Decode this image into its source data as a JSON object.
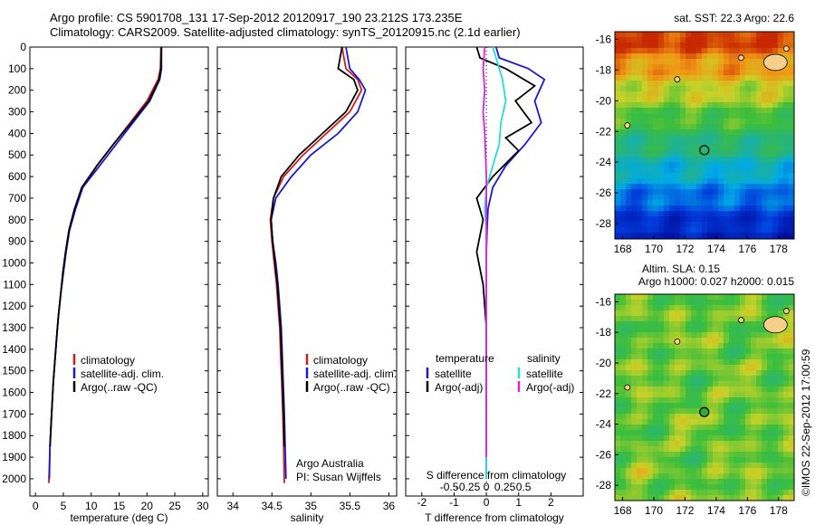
{
  "title_line1": "Argo profile: CS 5901708_131 17-Sep-2012 20120917_190 23.212S 173.235E",
  "title_line2": "Climatology: CARS2009. Satellite-adjusted climatology: synTS_20120915.nc (2.1d earlier)",
  "depth_ticks": [
    0,
    100,
    200,
    300,
    400,
    500,
    600,
    700,
    800,
    900,
    1000,
    1100,
    1200,
    1300,
    1400,
    1500,
    1600,
    1700,
    1800,
    1900,
    2000
  ],
  "colors": {
    "climatology": "#d11a1a",
    "satellite": "#1a1ad1",
    "argo": "#000000",
    "sal_satellite": "#22dddd",
    "sal_argo": "#e022e0"
  },
  "panels": {
    "temperature": {
      "xlabel": "temperature (deg C)",
      "xticks": [
        0,
        5,
        10,
        15,
        20,
        25,
        30
      ],
      "legend": [
        "climatology",
        "satellite-adj. clim.",
        "Argo(..raw -QC)"
      ]
    },
    "salinity": {
      "xlabel": "salinity",
      "xticks": [
        "34",
        "34.5",
        "35",
        "35.5",
        "36"
      ],
      "legend": [
        "climatology",
        "satellite-adj. clim.",
        "Argo(..raw -QC)"
      ],
      "credit1": "Argo Australia",
      "credit2": "PI: Susan Wijffels"
    },
    "difference": {
      "xlabel": "T difference from climatology",
      "s_label": "S difference from climatology",
      "t_ticks": [
        "-2",
        "-1",
        "0",
        "1",
        "2"
      ],
      "s_ticks": [
        "-0.5",
        "-0.25",
        "0",
        "0.25",
        "0.5"
      ],
      "leg_t_head": "temperature",
      "leg_s_head": "salinity",
      "leg_t1": "satellite",
      "leg_t2": "Argo(-adj)",
      "leg_s1": "satellite",
      "leg_s2": "Argo(-adj)"
    }
  },
  "map_sst": {
    "title": "sat. SST: 22.3  Argo: 22.6",
    "yticks": [
      "-16",
      "-18",
      "-20",
      "-22",
      "-24",
      "-26",
      "-28"
    ],
    "xticks": [
      "168",
      "170",
      "172",
      "174",
      "176",
      "178"
    ]
  },
  "map_sla": {
    "title1": "Altim. SLA: 0.15",
    "title2": "Argo h1000: 0.027 h2000: 0.015",
    "yticks": [
      "-16",
      "-18",
      "-20",
      "-22",
      "-24",
      "-26",
      "-28"
    ],
    "xticks": [
      "168",
      "170",
      "172",
      "174",
      "176",
      "178"
    ]
  },
  "stamp": "©IMOS 22-Sep-2012 17:00:59",
  "chart_data": [
    {
      "type": "line",
      "panel": "temperature",
      "xlabel": "temperature (deg C)",
      "ylabel": "",
      "xlim": [
        -1,
        31
      ],
      "ylim": [
        2080,
        0
      ],
      "series": [
        {
          "name": "climatology",
          "x": [
            22.5,
            22.4,
            22.0,
            20,
            17,
            14,
            11,
            8.5,
            7,
            6,
            5.4,
            4.9,
            4.5,
            4.1,
            3.8,
            3.5,
            3.2,
            3.0,
            2.8,
            2.6,
            2.4
          ],
          "y": [
            0,
            100,
            150,
            250,
            350,
            450,
            550,
            650,
            750,
            850,
            950,
            1050,
            1150,
            1250,
            1350,
            1450,
            1550,
            1650,
            1750,
            1850,
            2020
          ]
        },
        {
          "name": "satellite-adj. clim.",
          "x": [
            22.6,
            22.6,
            22.3,
            20.5,
            17.5,
            14.5,
            11.5,
            8.5,
            7.2,
            6.1,
            5.5,
            5.0,
            4.5,
            4.1,
            3.8,
            3.5,
            3.2,
            3.0,
            2.8,
            2.6,
            2.5
          ],
          "y": [
            0,
            100,
            150,
            250,
            350,
            450,
            550,
            650,
            750,
            850,
            950,
            1050,
            1150,
            1250,
            1350,
            1450,
            1550,
            1650,
            1750,
            1850,
            2000
          ]
        },
        {
          "name": "Argo(..raw -QC)",
          "x": [
            22.6,
            22.5,
            22.2,
            20.3,
            17.2,
            14.0,
            11.0,
            8.3,
            7.0,
            6.0,
            5.4,
            4.9,
            4.5,
            4.1,
            3.8,
            3.5,
            3.2,
            3.0,
            2.8,
            2.6
          ],
          "y": [
            0,
            100,
            150,
            250,
            350,
            450,
            550,
            650,
            750,
            850,
            950,
            1050,
            1150,
            1250,
            1350,
            1450,
            1550,
            1650,
            1750,
            1850
          ]
        }
      ]
    },
    {
      "type": "line",
      "panel": "salinity",
      "xlabel": "salinity",
      "ylabel": "",
      "xlim": [
        33.8,
        36.1
      ],
      "ylim": [
        2080,
        0
      ],
      "series": [
        {
          "name": "climatology",
          "x": [
            35.4,
            35.45,
            35.6,
            35.65,
            35.5,
            35.2,
            34.9,
            34.65,
            34.52,
            34.48,
            34.5,
            34.53,
            34.56,
            34.58,
            34.6,
            34.61,
            34.62,
            34.63,
            34.64,
            34.65,
            34.66
          ],
          "y": [
            0,
            100,
            150,
            200,
            300,
            400,
            500,
            600,
            700,
            800,
            900,
            1000,
            1100,
            1200,
            1300,
            1400,
            1500,
            1600,
            1700,
            1850,
            2020
          ]
        },
        {
          "name": "satellite-adj. clim.",
          "x": [
            35.45,
            35.5,
            35.62,
            35.7,
            35.6,
            35.35,
            35.0,
            34.75,
            34.55,
            34.49,
            34.51,
            34.55,
            34.58,
            34.6,
            34.62,
            34.63,
            34.64,
            34.65,
            34.66,
            34.67,
            34.68
          ],
          "y": [
            0,
            100,
            150,
            200,
            300,
            400,
            500,
            600,
            700,
            800,
            900,
            1000,
            1100,
            1200,
            1300,
            1400,
            1500,
            1600,
            1700,
            1850,
            2000
          ]
        },
        {
          "name": "Argo(..raw -QC)",
          "x": [
            35.4,
            35.35,
            35.55,
            35.6,
            35.45,
            35.15,
            34.85,
            34.62,
            34.52,
            34.49,
            34.51,
            34.54,
            34.57,
            34.59,
            34.61,
            34.62,
            34.63,
            34.64,
            34.65,
            34.66
          ],
          "y": [
            0,
            100,
            150,
            200,
            300,
            400,
            500,
            600,
            700,
            800,
            900,
            1000,
            1100,
            1200,
            1300,
            1400,
            1500,
            1600,
            1700,
            1850
          ]
        }
      ]
    },
    {
      "type": "line",
      "panel": "difference",
      "xlabel": "T difference from climatology",
      "ylabel": "",
      "xlim": [
        -2.5,
        3
      ],
      "ylim": [
        2080,
        0
      ],
      "series": [
        {
          "name": "temperature satellite",
          "x": [
            0.3,
            0.4,
            1.3,
            1.8,
            1.5,
            1.7,
            1.2,
            0.6,
            0.2,
            0.05,
            0.02,
            0.0,
            0.0,
            0.0,
            0.0,
            0.0,
            0.0
          ],
          "y": [
            0,
            50,
            100,
            150,
            250,
            350,
            450,
            550,
            650,
            750,
            850,
            950,
            1100,
            1300,
            1500,
            1700,
            2000
          ]
        },
        {
          "name": "temperature Argo(-adj)",
          "x": [
            -0.3,
            -0.2,
            0.6,
            1.5,
            0.9,
            1.4,
            0.6,
            1.0,
            0.2,
            -0.3,
            -0.1,
            -0.3,
            -0.1,
            0.0,
            0.0,
            0.0
          ],
          "y": [
            0,
            50,
            100,
            180,
            250,
            350,
            420,
            480,
            600,
            700,
            800,
            950,
            1100,
            1300,
            1500,
            1700
          ]
        },
        {
          "name": "salinity satellite",
          "x": [
            0.2,
            0.3,
            0.5,
            0.6,
            0.45,
            0.4,
            0.2,
            0.0,
            -0.05,
            0.0,
            0.0,
            0.0,
            0.0,
            0.0
          ],
          "y": [
            0,
            50,
            150,
            250,
            350,
            450,
            550,
            650,
            750,
            850,
            1000,
            1300,
            1600,
            2000
          ]
        },
        {
          "name": "salinity Argo(-adj)",
          "x": [
            -0.05,
            -0.1,
            -0.05,
            -0.1,
            -0.05,
            0.0,
            0.0,
            0.0,
            0.0,
            0.0,
            0.0
          ],
          "y": [
            0,
            100,
            200,
            300,
            400,
            600,
            800,
            1000,
            1300,
            1600,
            1900
          ]
        }
      ]
    },
    {
      "type": "heatmap",
      "panel": "sat. SST map",
      "title": "sat. SST: 22.3  Argo: 22.6",
      "xlim": [
        167.5,
        179
      ],
      "ylim": [
        -29,
        -15.5
      ]
    },
    {
      "type": "heatmap",
      "panel": "Altim. SLA map",
      "title": "Altim. SLA: 0.15",
      "xlim": [
        167.5,
        179
      ],
      "ylim": [
        -29,
        -15.5
      ]
    }
  ]
}
